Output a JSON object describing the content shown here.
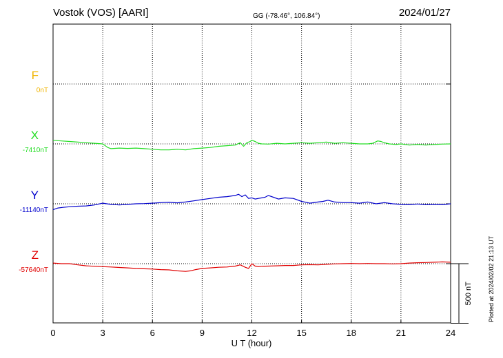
{
  "header": {
    "station": "Vostok (VOS)  [AARI]",
    "coords": "GG (-78.46°, 106.84°)",
    "date": "2024/01/27"
  },
  "plotted_note": "Plotted at 2024/02/02 21:13 UT",
  "chart_data": {
    "type": "line",
    "xlabel": "U T (hour)",
    "xlim": [
      0,
      24
    ],
    "xticks": [
      "0",
      "3",
      "6",
      "9",
      "12",
      "15",
      "18",
      "21",
      "24"
    ],
    "scale_bar_label": "500 nT",
    "scale_bar_nT": 500,
    "y_units": "nT",
    "grid": true,
    "series": [
      {
        "name": "F",
        "baseline_label": "0nT",
        "baseline_nT": 0,
        "color": "#f0b400",
        "x": [],
        "values": []
      },
      {
        "name": "X",
        "baseline_label": "-7410nT",
        "baseline_nT": -7410,
        "color": "#22dd22",
        "x": [
          0,
          0.5,
          1,
          1.5,
          2,
          2.5,
          3,
          3.3,
          3.5,
          4,
          4.5,
          5,
          5.5,
          6,
          6.5,
          7,
          7.5,
          8,
          8.5,
          9,
          9.5,
          10,
          10.5,
          11,
          11.3,
          11.5,
          11.7,
          11.9,
          12,
          12.2,
          12.4,
          12.6,
          13,
          13.5,
          14,
          14.5,
          15,
          15.5,
          16,
          16.5,
          17,
          17.5,
          18,
          18.5,
          19,
          19.3,
          19.6,
          19.8,
          20,
          20.3,
          20.7,
          21,
          21.5,
          22,
          22.5,
          23,
          23.5,
          24
        ],
        "values": [
          -7380,
          -7385,
          -7390,
          -7395,
          -7400,
          -7405,
          -7410,
          -7440,
          -7450,
          -7445,
          -7448,
          -7445,
          -7450,
          -7455,
          -7460,
          -7460,
          -7455,
          -7460,
          -7450,
          -7445,
          -7440,
          -7430,
          -7425,
          -7420,
          -7400,
          -7430,
          -7400,
          -7390,
          -7380,
          -7390,
          -7405,
          -7410,
          -7412,
          -7405,
          -7410,
          -7405,
          -7400,
          -7405,
          -7400,
          -7395,
          -7405,
          -7400,
          -7405,
          -7410,
          -7410,
          -7405,
          -7385,
          -7390,
          -7400,
          -7410,
          -7415,
          -7410,
          -7420,
          -7415,
          -7420,
          -7415,
          -7412,
          -7410
        ]
      },
      {
        "name": "Y",
        "baseline_label": "-11140nT",
        "baseline_nT": -11140,
        "color": "#0000cc",
        "x": [
          0,
          0.3,
          0.6,
          1,
          1.5,
          2,
          2.5,
          3,
          3.5,
          4,
          4.5,
          5,
          5.5,
          6,
          6.5,
          7,
          7.5,
          8,
          8.5,
          9,
          9.5,
          10,
          10.5,
          11,
          11.2,
          11.4,
          11.6,
          11.8,
          12,
          12.2,
          12.4,
          12.6,
          12.8,
          13,
          13.3,
          13.6,
          14,
          14.5,
          15,
          15.5,
          16,
          16.3,
          16.6,
          17,
          17.5,
          18,
          18.5,
          19,
          19.5,
          20,
          20.5,
          21,
          21.5,
          22,
          22.5,
          23,
          23.5,
          24
        ],
        "values": [
          -11190,
          -11175,
          -11170,
          -11165,
          -11160,
          -11158,
          -11150,
          -11135,
          -11145,
          -11150,
          -11145,
          -11140,
          -11138,
          -11135,
          -11130,
          -11128,
          -11132,
          -11125,
          -11115,
          -11105,
          -11095,
          -11085,
          -11080,
          -11070,
          -11060,
          -11080,
          -11065,
          -11095,
          -11090,
          -11100,
          -11095,
          -11090,
          -11085,
          -11070,
          -11085,
          -11100,
          -11090,
          -11095,
          -11120,
          -11135,
          -11125,
          -11120,
          -11110,
          -11125,
          -11130,
          -11130,
          -11135,
          -11125,
          -11140,
          -11130,
          -11140,
          -11145,
          -11148,
          -11142,
          -11148,
          -11145,
          -11148,
          -11140
        ]
      },
      {
        "name": "Z",
        "baseline_label": "-57640nT",
        "baseline_nT": -57640,
        "color": "#e00000",
        "x": [
          0,
          0.5,
          1,
          1.5,
          2,
          2.5,
          3,
          3.5,
          4,
          4.5,
          5,
          5.5,
          6,
          6.5,
          7,
          7.5,
          8,
          8.3,
          8.6,
          9,
          9.5,
          10,
          10.5,
          11,
          11.3,
          11.6,
          11.8,
          12,
          12.2,
          12.4,
          12.6,
          13,
          13.5,
          14,
          14.5,
          15,
          15.5,
          16,
          16.5,
          17,
          17.5,
          18,
          18.5,
          19,
          19.5,
          20,
          20.5,
          21,
          21.5,
          22,
          22.5,
          23,
          23.5,
          24
        ],
        "values": [
          -57635,
          -57640,
          -57640,
          -57650,
          -57658,
          -57662,
          -57665,
          -57668,
          -57672,
          -57675,
          -57680,
          -57683,
          -57685,
          -57690,
          -57692,
          -57700,
          -57705,
          -57700,
          -57690,
          -57680,
          -57675,
          -57670,
          -57668,
          -57660,
          -57650,
          -57670,
          -57680,
          -57640,
          -57660,
          -57665,
          -57662,
          -57660,
          -57658,
          -57655,
          -57655,
          -57650,
          -57648,
          -57650,
          -57645,
          -57642,
          -57640,
          -57638,
          -57640,
          -57638,
          -57640,
          -57640,
          -57642,
          -57640,
          -57635,
          -57632,
          -57630,
          -57628,
          -57625,
          -57628
        ]
      }
    ]
  }
}
